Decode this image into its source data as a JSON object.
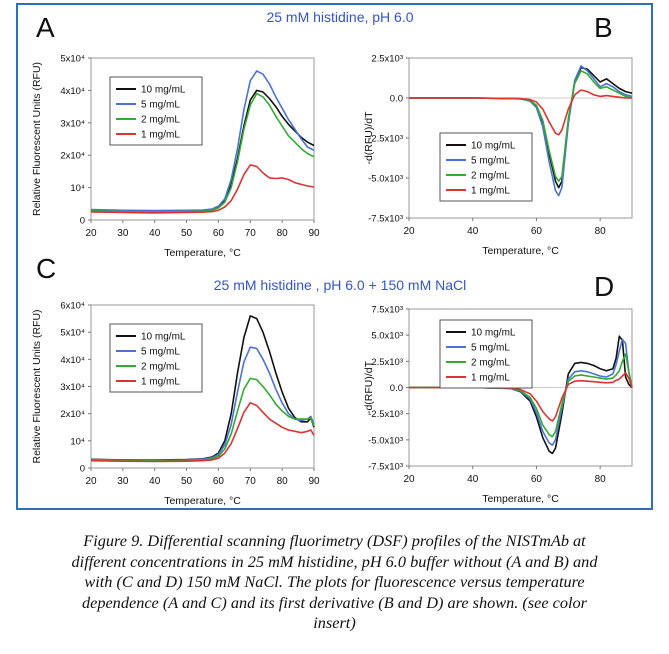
{
  "figure": {
    "title_top": "25 mM histidine, pH 6.0",
    "title_bottom": "25 mM histidine , pH 6.0 + 150 mM NaCl",
    "caption_lines": [
      "Figure 9.  Differential scanning fluorimetry (DSF) profiles of the NISTmAb at",
      "different concentrations in 25 mM histidine, pH 6.0 buffer without (A and B) and",
      "with (C and D) 150 mM NaCl.  The plots for fluorescence versus temperature",
      "dependence (A and C) and its first derivative (B and D) are shown.  (see color",
      "insert)"
    ]
  },
  "colors": {
    "10 mg/mL": "#111111",
    "5 mg/mL": "#4a73d6",
    "2 mg/mL": "#33aa33",
    "1 mg/mL": "#dd3333"
  },
  "chart_data": [
    {
      "id": "A",
      "type": "line",
      "panel_label": "A",
      "ylabel": "Relative Fluorescent Units (RFU)",
      "xlabel": "Temperature, °C",
      "xlim": [
        20,
        90
      ],
      "ylim": [
        0,
        50000
      ],
      "xticks": [
        "20",
        "30",
        "40",
        "50",
        "60",
        "70",
        "80",
        "90"
      ],
      "yticks": [
        {
          "v": 0,
          "t": "0"
        },
        {
          "v": 10000,
          "t": "10⁴"
        },
        {
          "v": 20000,
          "t": "2x10⁴"
        },
        {
          "v": 30000,
          "t": "3x10⁴"
        },
        {
          "v": 40000,
          "t": "4x10⁴"
        },
        {
          "v": 50000,
          "t": "5x10⁴"
        }
      ],
      "legend": [
        "10 mg/mL",
        "5 mg/mL",
        "2 mg/mL",
        "1 mg/mL"
      ],
      "series": [
        {
          "name": "10 mg/mL",
          "x": [
            20,
            30,
            40,
            50,
            55,
            58,
            60,
            62,
            64,
            66,
            68,
            70,
            72,
            74,
            76,
            78,
            80,
            82,
            84,
            86,
            88,
            90
          ],
          "y": [
            3000,
            2800,
            2700,
            2800,
            2900,
            3200,
            4000,
            6000,
            11000,
            19000,
            29000,
            37000,
            40000,
            39500,
            37500,
            35000,
            32000,
            29500,
            27500,
            25500,
            24000,
            23000
          ]
        },
        {
          "name": "5 mg/mL",
          "x": [
            20,
            30,
            40,
            50,
            55,
            58,
            60,
            62,
            64,
            66,
            68,
            70,
            72,
            74,
            76,
            78,
            80,
            82,
            84,
            86,
            88,
            90
          ],
          "y": [
            3200,
            3000,
            2900,
            3000,
            3100,
            3400,
            4300,
            6500,
            12500,
            22000,
            34000,
            43000,
            46000,
            45000,
            42000,
            38000,
            34500,
            31000,
            28000,
            25000,
            22500,
            21500
          ]
        },
        {
          "name": "2 mg/mL",
          "x": [
            20,
            30,
            40,
            50,
            55,
            58,
            60,
            62,
            64,
            66,
            68,
            70,
            72,
            74,
            76,
            78,
            80,
            82,
            84,
            86,
            88,
            90
          ],
          "y": [
            2800,
            2600,
            2500,
            2600,
            2700,
            3000,
            3700,
            5500,
            10000,
            18000,
            28000,
            35500,
            39000,
            38000,
            35500,
            32000,
            29000,
            26000,
            24000,
            22000,
            20500,
            19500
          ]
        },
        {
          "name": "1 mg/mL",
          "x": [
            20,
            30,
            40,
            50,
            55,
            58,
            60,
            62,
            64,
            66,
            68,
            70,
            72,
            74,
            76,
            78,
            80,
            82,
            84,
            86,
            88,
            90
          ],
          "y": [
            2500,
            2300,
            2200,
            2300,
            2400,
            2600,
            3000,
            4000,
            6000,
            9500,
            14000,
            17000,
            16500,
            14500,
            13000,
            12800,
            13000,
            12500,
            11500,
            11000,
            10500,
            10200
          ]
        }
      ]
    },
    {
      "id": "B",
      "type": "line",
      "panel_label": "B",
      "ylabel": "-d(RFU)/dT",
      "xlabel": "Temperature, °C",
      "xlim": [
        20,
        90
      ],
      "ylim": [
        -7500,
        2500
      ],
      "xticks": [
        "20",
        "40",
        "60",
        "80"
      ],
      "yticks": [
        {
          "v": 2500,
          "t": "2.5x10³"
        },
        {
          "v": 0,
          "t": "0.0"
        },
        {
          "v": -2500,
          "t": "-2.5x10³"
        },
        {
          "v": -5000,
          "t": "-5.0x10³"
        },
        {
          "v": -7500,
          "t": "-7.5x10³"
        }
      ],
      "legend": [
        "10 mg/mL",
        "5 mg/mL",
        "2 mg/mL",
        "1 mg/mL"
      ],
      "series": [
        {
          "name": "10 mg/mL",
          "x": [
            20,
            40,
            55,
            58,
            60,
            62,
            64,
            66,
            67,
            68,
            70,
            72,
            74,
            76,
            78,
            80,
            82,
            84,
            86,
            88,
            90
          ],
          "y": [
            0,
            0,
            -50,
            -150,
            -500,
            -1500,
            -3500,
            -5200,
            -5600,
            -5200,
            -1500,
            1000,
            1900,
            1800,
            1400,
            1000,
            1200,
            900,
            600,
            400,
            300
          ]
        },
        {
          "name": "5 mg/mL",
          "x": [
            20,
            40,
            55,
            58,
            60,
            62,
            64,
            66,
            67,
            68,
            70,
            72,
            74,
            76,
            78,
            80,
            82,
            84,
            86,
            88,
            90
          ],
          "y": [
            0,
            0,
            -50,
            -200,
            -600,
            -1800,
            -4000,
            -5800,
            -6100,
            -5600,
            -1600,
            1100,
            2000,
            1700,
            1200,
            700,
            900,
            700,
            400,
            200,
            100
          ]
        },
        {
          "name": "2 mg/mL",
          "x": [
            20,
            40,
            55,
            58,
            60,
            62,
            64,
            66,
            67,
            68,
            70,
            72,
            74,
            76,
            78,
            80,
            82,
            84,
            86,
            88,
            90
          ],
          "y": [
            0,
            0,
            -50,
            -150,
            -450,
            -1400,
            -3300,
            -4900,
            -5200,
            -4900,
            -1300,
            900,
            1700,
            1500,
            1000,
            600,
            700,
            500,
            300,
            100,
            0
          ]
        },
        {
          "name": "1 mg/mL",
          "x": [
            20,
            40,
            55,
            58,
            60,
            62,
            64,
            66,
            67,
            68,
            70,
            72,
            74,
            76,
            78,
            80,
            82,
            84,
            86,
            88,
            90
          ],
          "y": [
            0,
            0,
            -30,
            -100,
            -250,
            -700,
            -1500,
            -2200,
            -2300,
            -2000,
            -700,
            200,
            500,
            400,
            200,
            100,
            150,
            100,
            50,
            0,
            0
          ]
        }
      ]
    },
    {
      "id": "C",
      "type": "line",
      "panel_label": "C",
      "ylabel": "Relative Fluorescent Units (RFU)",
      "xlabel": "Temperature, °C",
      "xlim": [
        20,
        90
      ],
      "ylim": [
        0,
        60000
      ],
      "xticks": [
        "20",
        "30",
        "40",
        "50",
        "60",
        "70",
        "80",
        "90"
      ],
      "yticks": [
        {
          "v": 0,
          "t": "0"
        },
        {
          "v": 10000,
          "t": "10⁴"
        },
        {
          "v": 20000,
          "t": "2x10⁴"
        },
        {
          "v": 30000,
          "t": "3x10⁴"
        },
        {
          "v": 40000,
          "t": "4x10⁴"
        },
        {
          "v": 50000,
          "t": "5x10⁴"
        },
        {
          "v": 60000,
          "t": "6x10⁴"
        }
      ],
      "legend": [
        "10 mg/mL",
        "5 mg/mL",
        "2 mg/mL",
        "1 mg/mL"
      ],
      "series": [
        {
          "name": "10 mg/mL",
          "x": [
            20,
            30,
            40,
            50,
            55,
            58,
            60,
            62,
            64,
            66,
            68,
            70,
            72,
            74,
            76,
            78,
            80,
            82,
            84,
            86,
            88,
            89,
            90
          ],
          "y": [
            3200,
            3000,
            2900,
            3100,
            3400,
            4000,
            5500,
            10000,
            20000,
            35000,
            48000,
            56000,
            55000,
            50000,
            43000,
            35000,
            28000,
            22000,
            18500,
            17000,
            17000,
            18500,
            15000
          ]
        },
        {
          "name": "5 mg/mL",
          "x": [
            20,
            30,
            40,
            50,
            55,
            58,
            60,
            62,
            64,
            66,
            68,
            70,
            72,
            74,
            76,
            78,
            80,
            82,
            84,
            86,
            88,
            89,
            90
          ],
          "y": [
            3100,
            2900,
            2800,
            3000,
            3300,
            3800,
            5000,
            8500,
            16000,
            28000,
            39000,
            44500,
            44000,
            40000,
            35000,
            29000,
            24000,
            20000,
            18000,
            17500,
            18000,
            19000,
            16000
          ]
        },
        {
          "name": "2 mg/mL",
          "x": [
            20,
            30,
            40,
            50,
            55,
            58,
            60,
            62,
            64,
            66,
            68,
            70,
            72,
            74,
            76,
            78,
            80,
            82,
            84,
            86,
            88,
            89,
            90
          ],
          "y": [
            2900,
            2700,
            2600,
            2800,
            3000,
            3400,
            4300,
            7000,
            12500,
            21000,
            29000,
            33000,
            32500,
            30000,
            27000,
            23500,
            21000,
            19000,
            18000,
            18000,
            18000,
            18500,
            15500
          ]
        },
        {
          "name": "1 mg/mL",
          "x": [
            20,
            30,
            40,
            50,
            55,
            58,
            60,
            62,
            64,
            66,
            68,
            70,
            72,
            74,
            76,
            78,
            80,
            82,
            84,
            86,
            88,
            89,
            90
          ],
          "y": [
            2700,
            2500,
            2400,
            2500,
            2700,
            3000,
            3600,
            5500,
            9000,
            14500,
            20500,
            24000,
            23000,
            20500,
            18000,
            16500,
            15000,
            14000,
            13500,
            13000,
            13500,
            14000,
            12000
          ]
        }
      ]
    },
    {
      "id": "D",
      "type": "line",
      "panel_label": "D",
      "ylabel": "-d(RFU)/dT",
      "xlabel": "Temperature, °C",
      "xlim": [
        20,
        90
      ],
      "ylim": [
        -7500,
        7500
      ],
      "xticks": [
        "20",
        "40",
        "60",
        "80"
      ],
      "yticks": [
        {
          "v": 7500,
          "t": "7.5x10³"
        },
        {
          "v": 5000,
          "t": "5.0x10³"
        },
        {
          "v": 2500,
          "t": "2.5x10³"
        },
        {
          "v": 0,
          "t": "0.0"
        },
        {
          "v": -2500,
          "t": "-2.5x10³"
        },
        {
          "v": -5000,
          "t": "-5.0x10³"
        },
        {
          "v": -7500,
          "t": "-7.5x10³"
        }
      ],
      "legend": [
        "10 mg/mL",
        "5 mg/mL",
        "2 mg/mL",
        "1 mg/mL"
      ],
      "series": [
        {
          "name": "10 mg/mL",
          "x": [
            20,
            40,
            52,
            55,
            58,
            60,
            62,
            64,
            65,
            66,
            68,
            70,
            72,
            74,
            76,
            78,
            80,
            82,
            84,
            85,
            86,
            87,
            88,
            89,
            90
          ],
          "y": [
            0,
            0,
            -100,
            -400,
            -1300,
            -2800,
            -4800,
            -6100,
            -6300,
            -5800,
            -2500,
            1300,
            2300,
            2400,
            2300,
            2100,
            1800,
            1600,
            1800,
            2800,
            4900,
            4500,
            1000,
            300,
            0
          ]
        },
        {
          "name": "5 mg/mL",
          "x": [
            20,
            40,
            52,
            55,
            58,
            60,
            62,
            64,
            65,
            66,
            68,
            70,
            72,
            74,
            76,
            78,
            80,
            82,
            84,
            85,
            86,
            87,
            88,
            89,
            90
          ],
          "y": [
            0,
            0,
            -90,
            -350,
            -1100,
            -2400,
            -4200,
            -5300,
            -5500,
            -5000,
            -2000,
            800,
            1500,
            1600,
            1500,
            1300,
            1100,
            1000,
            1300,
            2200,
            3500,
            4600,
            4200,
            1500,
            0
          ]
        },
        {
          "name": "2 mg/mL",
          "x": [
            20,
            40,
            52,
            55,
            58,
            60,
            62,
            64,
            65,
            66,
            68,
            70,
            72,
            74,
            76,
            78,
            80,
            82,
            84,
            85,
            86,
            87,
            88,
            89,
            90
          ],
          "y": [
            0,
            0,
            -80,
            -300,
            -950,
            -2000,
            -3600,
            -4500,
            -4700,
            -4200,
            -1600,
            600,
            1100,
            1200,
            1100,
            1000,
            900,
            800,
            900,
            1200,
            1600,
            2500,
            3200,
            1500,
            0
          ]
        },
        {
          "name": "1 mg/mL",
          "x": [
            20,
            40,
            52,
            55,
            58,
            60,
            62,
            64,
            65,
            66,
            68,
            70,
            72,
            74,
            76,
            78,
            80,
            82,
            84,
            85,
            86,
            87,
            88,
            89,
            90
          ],
          "y": [
            0,
            0,
            -60,
            -200,
            -600,
            -1300,
            -2300,
            -3000,
            -3200,
            -2800,
            -1000,
            300,
            600,
            650,
            600,
            550,
            500,
            450,
            500,
            700,
            800,
            1100,
            1400,
            900,
            0
          ]
        }
      ]
    }
  ]
}
